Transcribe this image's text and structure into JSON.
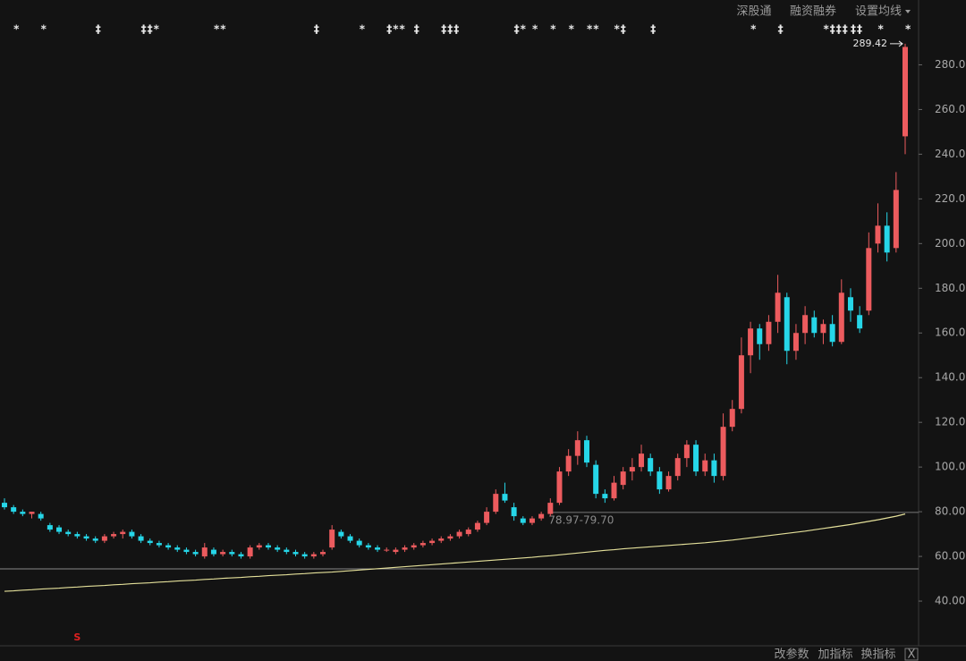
{
  "chart_data": {
    "type": "candlestick",
    "toolbar": [
      "深股通",
      "融资融券",
      "设置均线"
    ],
    "footer": [
      "改参数",
      "加指标",
      "换指标",
      "X"
    ],
    "up_color": "#ec5b5e",
    "down_color": "#26d6e8",
    "ohlc": [
      [
        84,
        86,
        81,
        82
      ],
      [
        82,
        83,
        79,
        80
      ],
      [
        80,
        81,
        78,
        79
      ],
      [
        79,
        80,
        77,
        80
      ],
      [
        79,
        80,
        76,
        77
      ],
      [
        74,
        75,
        71,
        72
      ],
      [
        73,
        74,
        70,
        71
      ],
      [
        71,
        72,
        69,
        70
      ],
      [
        70,
        71,
        68,
        69
      ],
      [
        69,
        70,
        67,
        68
      ],
      [
        68,
        69,
        66,
        67
      ],
      [
        67,
        70,
        66,
        69
      ],
      [
        69,
        71,
        68,
        70
      ],
      [
        70,
        72,
        68,
        71
      ],
      [
        71,
        72,
        68,
        69
      ],
      [
        69,
        70,
        66,
        67
      ],
      [
        67,
        68,
        65,
        66
      ],
      [
        66,
        67,
        64,
        65
      ],
      [
        65,
        66,
        63,
        64
      ],
      [
        64,
        65,
        62,
        63
      ],
      [
        63,
        64,
        61,
        62
      ],
      [
        62,
        63,
        60,
        61
      ],
      [
        60,
        66,
        59,
        64
      ],
      [
        63,
        64,
        60,
        61
      ],
      [
        61,
        63,
        60,
        62
      ],
      [
        62,
        63,
        60,
        61
      ],
      [
        61,
        62,
        59,
        60
      ],
      [
        60,
        65,
        59,
        64
      ],
      [
        64,
        66,
        63,
        65
      ],
      [
        65,
        66,
        63,
        64
      ],
      [
        64,
        65,
        62,
        63
      ],
      [
        63,
        64,
        61,
        62
      ],
      [
        62,
        63,
        60,
        61
      ],
      [
        61,
        62,
        59,
        60
      ],
      [
        60,
        62,
        59,
        61
      ],
      [
        61,
        63,
        60,
        62
      ],
      [
        64,
        74,
        63,
        72
      ],
      [
        71,
        72,
        68,
        69
      ],
      [
        69,
        70,
        66,
        67
      ],
      [
        67,
        68,
        64,
        65
      ],
      [
        65,
        66,
        63,
        64
      ],
      [
        64,
        65,
        62,
        63
      ],
      [
        63,
        64,
        62,
        63
      ],
      [
        62,
        64,
        61,
        63
      ],
      [
        63,
        65,
        62,
        64
      ],
      [
        64,
        66,
        63,
        65
      ],
      [
        65,
        67,
        64,
        66
      ],
      [
        66,
        68,
        65,
        67
      ],
      [
        67,
        69,
        66,
        68
      ],
      [
        68,
        70,
        67,
        69
      ],
      [
        69,
        72,
        68,
        71
      ],
      [
        70,
        73,
        69,
        72
      ],
      [
        72,
        76,
        71,
        75
      ],
      [
        75,
        82,
        74,
        80
      ],
      [
        80,
        90,
        79,
        88
      ],
      [
        88,
        93,
        84,
        85
      ],
      [
        82,
        84,
        76,
        78
      ],
      [
        77,
        78,
        74,
        75
      ],
      [
        75,
        78,
        74,
        77
      ],
      [
        77,
        80,
        76,
        79
      ],
      [
        79,
        86,
        78,
        84
      ],
      [
        84,
        100,
        83,
        98
      ],
      [
        98,
        108,
        96,
        105
      ],
      [
        105,
        116,
        101,
        112
      ],
      [
        112,
        114,
        100,
        102
      ],
      [
        101,
        103,
        86,
        88
      ],
      [
        88,
        90,
        84,
        86
      ],
      [
        86,
        96,
        85,
        93
      ],
      [
        92,
        100,
        90,
        98
      ],
      [
        98,
        104,
        94,
        100
      ],
      [
        100,
        110,
        98,
        106
      ],
      [
        104,
        106,
        96,
        98
      ],
      [
        98,
        100,
        88,
        90
      ],
      [
        90,
        98,
        89,
        96
      ],
      [
        96,
        106,
        94,
        104
      ],
      [
        104,
        112,
        100,
        110
      ],
      [
        110,
        112,
        96,
        98
      ],
      [
        98,
        106,
        96,
        103
      ],
      [
        103,
        106,
        93,
        96
      ],
      [
        96,
        124,
        94,
        118
      ],
      [
        118,
        130,
        116,
        126
      ],
      [
        126,
        158,
        124,
        150
      ],
      [
        150,
        165,
        142,
        162
      ],
      [
        162,
        164,
        148,
        155
      ],
      [
        155,
        168,
        152,
        165
      ],
      [
        165,
        186,
        160,
        178
      ],
      [
        176,
        178,
        146,
        152
      ],
      [
        152,
        164,
        148,
        160
      ],
      [
        160,
        172,
        155,
        168
      ],
      [
        167,
        170,
        158,
        160
      ],
      [
        160,
        166,
        155,
        164
      ],
      [
        164,
        168,
        154,
        156
      ],
      [
        156,
        184,
        155,
        178
      ],
      [
        176,
        180,
        165,
        170
      ],
      [
        168,
        172,
        160,
        162
      ],
      [
        170,
        205,
        168,
        198
      ],
      [
        200,
        218,
        196,
        208
      ],
      [
        208,
        214,
        192,
        196
      ],
      [
        198,
        232,
        196,
        224
      ],
      [
        248,
        289.42,
        240,
        288
      ]
    ],
    "series": [
      {
        "color": "#e4e09a",
        "values": [
          44.4,
          44.6,
          44.9,
          45.1,
          45.4,
          45.6,
          45.8,
          46.1,
          46.3,
          46.6,
          46.8,
          47.0,
          47.3,
          47.5,
          47.8,
          48.0,
          48.2,
          48.5,
          48.7,
          49.0,
          49.2,
          49.4,
          49.7,
          49.9,
          50.2,
          50.4,
          50.6,
          50.9,
          51.1,
          51.4,
          51.6,
          51.8,
          52.1,
          52.3,
          52.6,
          52.8,
          53.0,
          53.3,
          53.6,
          53.9,
          54.2,
          54.5,
          54.8,
          55.1,
          55.4,
          55.7,
          56.0,
          56.3,
          56.6,
          56.9,
          57.2,
          57.5,
          57.8,
          58.1,
          58.4,
          58.7,
          59.0,
          59.3,
          59.6,
          60.0,
          60.3,
          60.7,
          61.1,
          61.5,
          61.9,
          62.3,
          62.7,
          63.0,
          63.4,
          63.7,
          64.0,
          64.3,
          64.6,
          64.9,
          65.2,
          65.5,
          65.8,
          66.1,
          66.5,
          66.9,
          67.3,
          67.8,
          68.3,
          68.8,
          69.3,
          69.8,
          70.3,
          70.8,
          71.3,
          71.9,
          72.5,
          73.1,
          73.7,
          74.3,
          75.0,
          75.7,
          76.4,
          77.2,
          78.0,
          79.0
        ]
      }
    ],
    "ylim": [
      20,
      301
    ],
    "yticks": [
      {
        "value": 40,
        "label": "40.00"
      },
      {
        "value": 60,
        "label": "60.00"
      },
      {
        "value": 80,
        "label": "80.00"
      },
      {
        "value": 100,
        "label": "100.00"
      },
      {
        "value": 120,
        "label": "120.00"
      },
      {
        "value": 140,
        "label": "140.00"
      },
      {
        "value": 160,
        "label": "160.00"
      },
      {
        "value": 180,
        "label": "180.00"
      },
      {
        "value": 200,
        "label": "200.00"
      },
      {
        "value": 220,
        "label": "220.00"
      },
      {
        "value": 240,
        "label": "240.00"
      },
      {
        "value": 260,
        "label": "260.00"
      },
      {
        "value": 280,
        "label": "280.00"
      }
    ],
    "ref_line": {
      "value": 54.4,
      "color": "#8a8a8a"
    },
    "range_line": {
      "value": 79.7,
      "start": 60,
      "label": "78.97-79.70",
      "color": "#777777"
    },
    "high_annotation": 289.42,
    "events": [
      {
        "index": 1,
        "label": "*"
      },
      {
        "index": 4,
        "label": "*"
      },
      {
        "index": 10,
        "label": "‡"
      },
      {
        "index": 15,
        "label": "‡‡*"
      },
      {
        "index": 23,
        "label": "**"
      },
      {
        "index": 34,
        "label": "‡"
      },
      {
        "index": 39,
        "label": "*"
      },
      {
        "index": 42,
        "label": "‡**"
      },
      {
        "index": 45,
        "label": "‡"
      },
      {
        "index": 48,
        "label": "‡‡‡"
      },
      {
        "index": 56,
        "label": "‡*"
      },
      {
        "index": 58,
        "label": "*"
      },
      {
        "index": 60,
        "label": "*"
      },
      {
        "index": 62,
        "label": "*"
      },
      {
        "index": 64,
        "label": "**"
      },
      {
        "index": 67,
        "label": "*‡"
      },
      {
        "index": 71,
        "label": "‡"
      },
      {
        "index": 82,
        "label": "*"
      },
      {
        "index": 85,
        "label": "‡"
      },
      {
        "index": 90,
        "label": "*‡‡‡"
      },
      {
        "index": 93,
        "label": "‡‡"
      },
      {
        "index": 96,
        "label": "*"
      },
      {
        "index": 99,
        "label": "*"
      }
    ],
    "signal": {
      "index": 8,
      "label": "S",
      "color": "#e02020"
    }
  }
}
